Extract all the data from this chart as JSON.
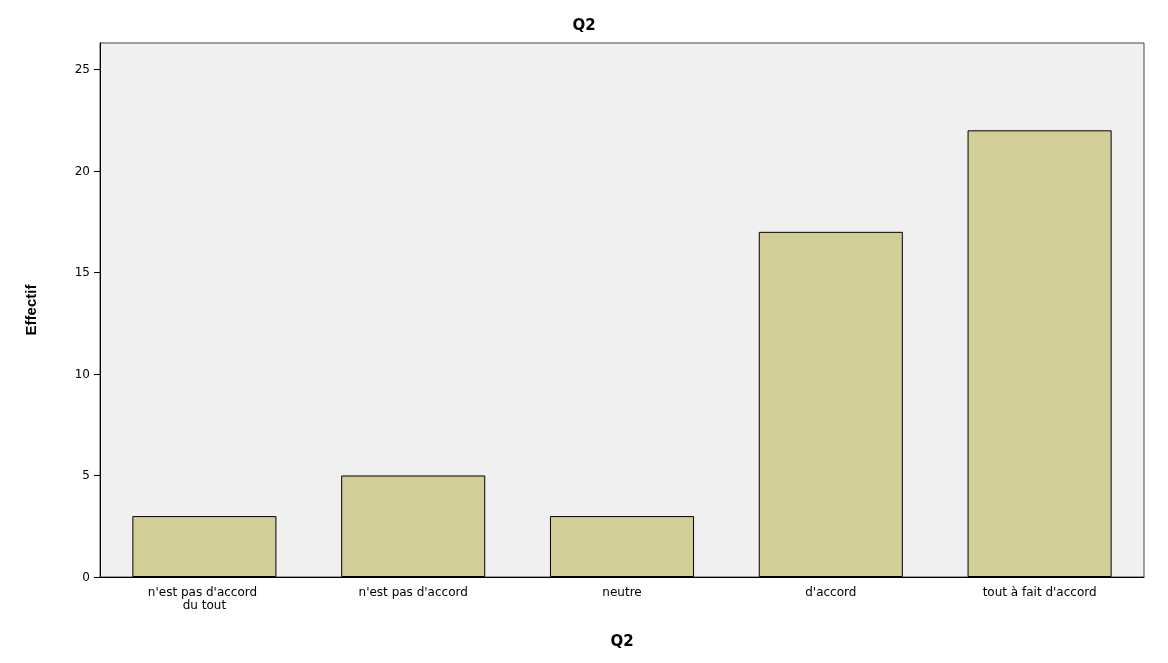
{
  "chart_data": {
    "type": "bar",
    "title": "Q2",
    "xlabel": "Q2",
    "ylabel": "Effectif",
    "categories": [
      "n'est pas d'accord du tout",
      "n'est pas d'accord",
      "neutre",
      "d'accord",
      "tout à fait d'accord"
    ],
    "values": [
      3,
      5,
      3,
      17,
      22
    ],
    "color": "#d3ce97",
    "ylim": [
      0,
      26.3
    ],
    "yticks": [
      0,
      5,
      10,
      15,
      20,
      25
    ],
    "grid": false
  }
}
